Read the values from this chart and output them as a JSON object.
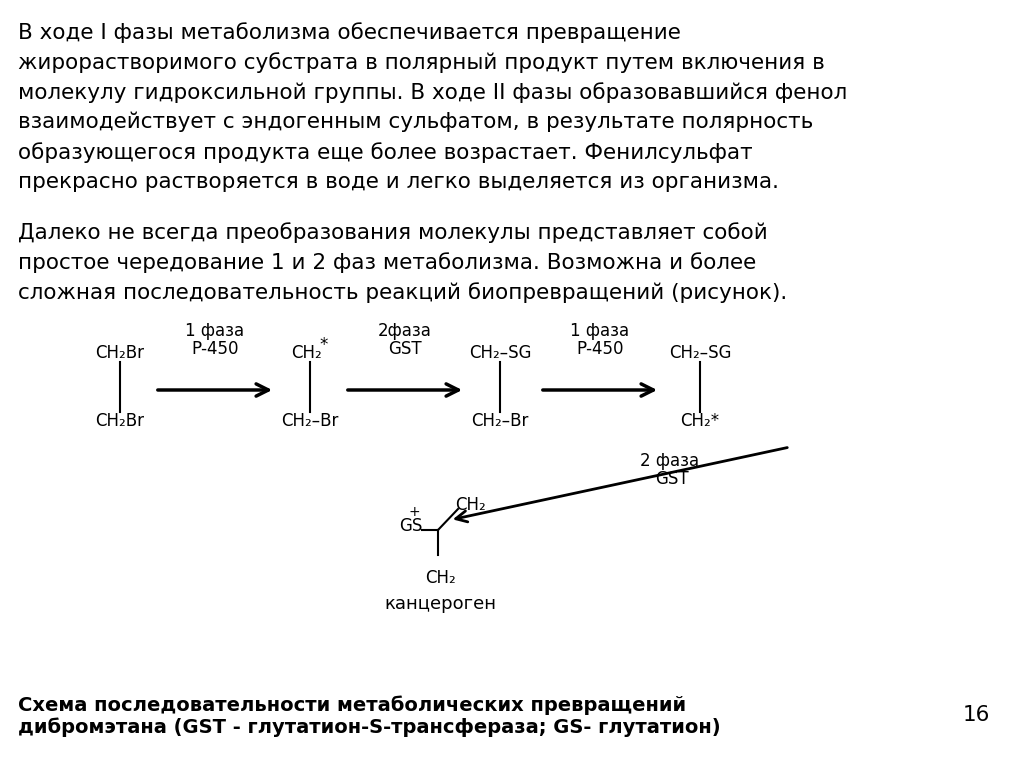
{
  "background_color": "#ffffff",
  "page_number": "16",
  "font_size_text": 15.5,
  "font_size_chem": 12,
  "font_size_caption": 14,
  "p1_lines": [
    "В ходе I фазы метаболизма обеспечивается превращение",
    "жирорастворимого субстрата в полярный продукт путем включения в",
    "молекулу гидроксильной группы. В ходе II фазы образовавшийся фенол",
    "взаимодействует с эндогенным сульфатом, в результате полярность",
    "образующегося продукта еще более возрастает. Фенилсульфат",
    "прекрасно растворяется в воде и легко выделяется из организма."
  ],
  "p2_lines": [
    "Далеко не всегда преобразования молекулы представляет собой",
    "простое чередование 1 и 2 фаз метаболизма. Возможна и более",
    "сложная последовательность реакций биопревращений (рисунок)."
  ],
  "phase_labels": [
    "1 фаза",
    "2фаза",
    "1 фаза"
  ],
  "enzyme_labels": [
    "Р-450",
    "GST",
    "Р-450"
  ],
  "mol1_top": "CH₂Br",
  "mol1_bot": "CH₂Br",
  "mol2_top": "CH₂",
  "mol2_top_sup": "*",
  "mol2_bot": "CH₂–Br",
  "mol3_top": "CH₂–SG",
  "mol3_bot": "CH₂–Br",
  "mol4_top": "CH₂–SG",
  "mol4_bot": "CH₂*",
  "phase2_label": "2 фаза",
  "gst2_label": "GST",
  "prod_gs": "GS",
  "prod_plus": "+",
  "prod_ch2_top": "CH₂",
  "prod_ch2_bot": "CH₂",
  "carcinogen": "канцероген",
  "caption_line1": "Схема последовательности метаболических превращений",
  "caption_line2": "дибромэтана (GST - глутатион-S-трансфераза; GS- глутатион)"
}
